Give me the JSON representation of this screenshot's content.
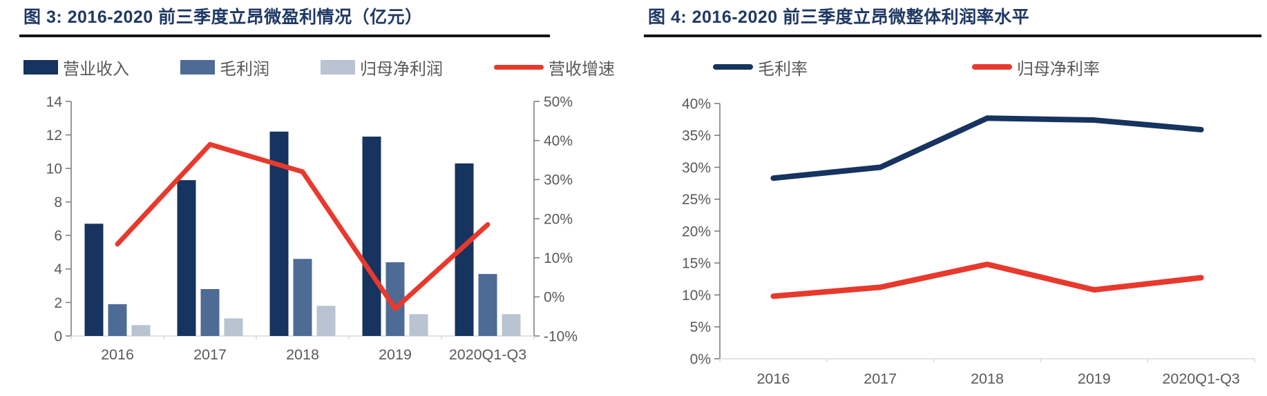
{
  "colors": {
    "navy": "#17335F",
    "medium_blue": "#4E6B96",
    "light_blue_gray": "#B9C3D2",
    "red": "#E8392D",
    "title_text": "#1F3864",
    "axis_text": "#595959",
    "axis_line": "#7F7F7F",
    "baseline": "#D9D9D9",
    "title_rule": "#141414"
  },
  "chart_data": [
    {
      "type": "bar+line",
      "title": "图 3:  2016-2020 前三季度立昂微盈利情况（亿元）",
      "categories": [
        "2016",
        "2017",
        "2018",
        "2019",
        "2020Q1-Q3"
      ],
      "bar_series": [
        {
          "name": "营业收入",
          "color_key": "navy",
          "values": [
            6.7,
            9.3,
            12.2,
            11.9,
            10.3
          ]
        },
        {
          "name": "毛利润",
          "color_key": "medium_blue",
          "values": [
            1.9,
            2.8,
            4.6,
            4.4,
            3.7
          ]
        },
        {
          "name": "归母净利润",
          "color_key": "light_blue_gray",
          "values": [
            0.65,
            1.05,
            1.8,
            1.3,
            1.3
          ]
        }
      ],
      "line_series": [
        {
          "name": "营收增速",
          "color_key": "red",
          "axis": "right",
          "values": [
            13.5,
            39,
            32,
            -3,
            18.5
          ]
        }
      ],
      "left_axis": {
        "min": 0,
        "max": 14,
        "step": 2,
        "labels": [
          "0",
          "2",
          "4",
          "6",
          "8",
          "10",
          "12",
          "14"
        ]
      },
      "right_axis": {
        "min": -10,
        "max": 50,
        "step": 10,
        "labels": [
          "-10%",
          "0%",
          "10%",
          "20%",
          "30%",
          "40%",
          "50%"
        ]
      },
      "grid": "off",
      "legend_position": "top"
    },
    {
      "type": "line",
      "title": "图 4:  2016-2020 前三季度立昂微整体利润率水平",
      "categories": [
        "2016",
        "2017",
        "2018",
        "2019",
        "2020Q1-Q3"
      ],
      "line_series": [
        {
          "name": "毛利率",
          "color_key": "navy",
          "axis": "left",
          "values": [
            28.3,
            30.0,
            37.7,
            37.4,
            35.9
          ]
        },
        {
          "name": "归母净利率",
          "color_key": "red",
          "axis": "left",
          "values": [
            9.8,
            11.2,
            14.8,
            10.8,
            12.7
          ]
        }
      ],
      "left_axis": {
        "min": 0,
        "max": 40,
        "step": 5,
        "labels": [
          "0%",
          "5%",
          "10%",
          "15%",
          "20%",
          "25%",
          "30%",
          "35%",
          "40%"
        ]
      },
      "grid": "off",
      "legend_position": "top"
    }
  ]
}
